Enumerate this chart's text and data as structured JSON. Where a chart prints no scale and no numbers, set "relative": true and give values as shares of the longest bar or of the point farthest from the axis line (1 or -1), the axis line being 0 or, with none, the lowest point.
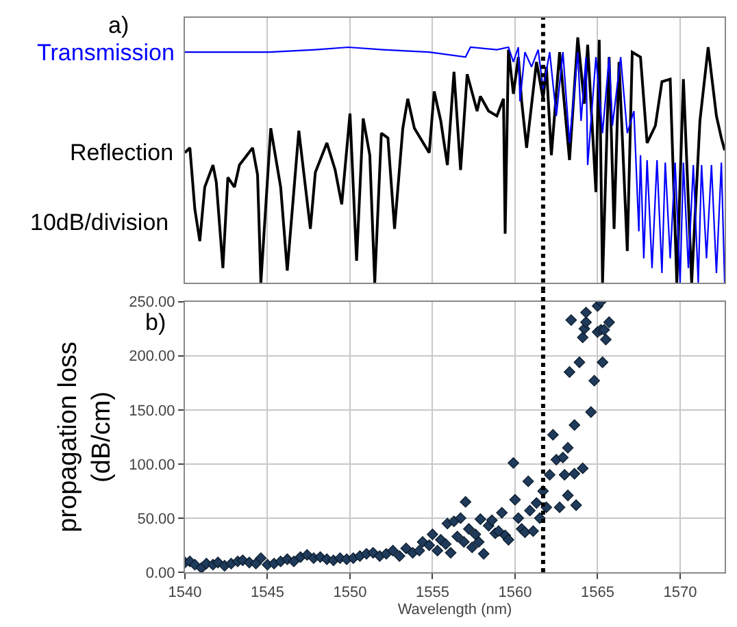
{
  "chart_data": [
    {
      "type": "line",
      "title": "a)",
      "relative": true,
      "xlim": [
        1540,
        1572.7
      ],
      "xticks": [
        1540,
        1545,
        1550,
        1555,
        1560,
        1565,
        1570
      ],
      "tick_labels": false,
      "grid": "x",
      "annotations": [
        "10dB/division"
      ],
      "ref_lines": [
        {
          "axis": "x",
          "value": 1561.7,
          "color": "#000000",
          "line_style": "dotted"
        }
      ],
      "series": [
        {
          "name": "Reflection",
          "color": "#000000",
          "x": [
            1540.0,
            1540.3,
            1540.6,
            1540.9,
            1541.2,
            1541.7,
            1541.9,
            1542.3,
            1542.6,
            1543.0,
            1543.3,
            1544.1,
            1544.4,
            1544.6,
            1545.2,
            1545.8,
            1546.2,
            1546.9,
            1547.6,
            1547.9,
            1548.6,
            1549.1,
            1549.5,
            1550.0,
            1550.4,
            1550.8,
            1551.2,
            1551.5,
            1551.9,
            1552.3,
            1552.7,
            1553.2,
            1553.5,
            1553.9,
            1554.8,
            1555.1,
            1555.5,
            1555.9,
            1556.3,
            1556.7,
            1557.1,
            1557.7,
            1557.9,
            1558.4,
            1558.9,
            1559.3,
            1559.4,
            1559.6,
            1559.9,
            1560.2,
            1560.4,
            1560.7,
            1561.3,
            1561.7,
            1561.9,
            1562.2,
            1562.7,
            1563.3,
            1563.8,
            1564.2,
            1564.4,
            1564.9,
            1565.1,
            1565.3,
            1565.7,
            1566.0,
            1566.3,
            1566.8,
            1567.1,
            1567.6,
            1568.0,
            1568.5,
            1568.9,
            1569.4,
            1569.8,
            1570.2,
            1570.7,
            1571.2,
            1571.7,
            1572.2,
            1572.5,
            1572.7
          ],
          "values": [
            0.53,
            0.55,
            0.3,
            0.17,
            0.39,
            0.48,
            0.41,
            0.06,
            0.43,
            0.39,
            0.48,
            0.55,
            0.44,
            0.0,
            0.63,
            0.39,
            0.05,
            0.62,
            0.22,
            0.45,
            0.57,
            0.46,
            0.32,
            0.69,
            0.09,
            0.67,
            0.52,
            0.0,
            0.61,
            0.59,
            0.22,
            0.63,
            0.75,
            0.63,
            0.53,
            0.78,
            0.66,
            0.48,
            0.86,
            0.46,
            0.85,
            0.7,
            0.76,
            0.7,
            0.68,
            0.75,
            0.2,
            0.95,
            0.77,
            0.92,
            0.74,
            0.55,
            0.9,
            0.75,
            0.88,
            0.52,
            0.94,
            0.5,
            1.0,
            0.73,
            0.97,
            0.37,
            0.99,
            0.0,
            0.92,
            0.22,
            0.9,
            0.13,
            0.94,
            0.92,
            0.57,
            0.64,
            0.82,
            0.83,
            0.0,
            0.83,
            0.0,
            0.66,
            0.96,
            0.68,
            0.59,
            0.54
          ]
        },
        {
          "name": "Transmission",
          "color": "#0000ff",
          "x": [
            1540.0,
            1542.3,
            1545.1,
            1547.9,
            1549.9,
            1552.0,
            1554.8,
            1557.0,
            1557.3,
            1558.9,
            1559.6,
            1559.9,
            1560.2,
            1560.3,
            1560.6,
            1561.0,
            1561.4,
            1561.7,
            1562.1,
            1562.5,
            1562.9,
            1563.3,
            1563.8,
            1564.0,
            1564.3,
            1564.4,
            1564.9,
            1565.3,
            1565.7,
            1565.9,
            1566.4,
            1566.8,
            1567.2,
            1567.5,
            1567.6,
            1567.8,
            1568.0,
            1568.3,
            1568.6,
            1568.9,
            1569.1,
            1569.4,
            1569.7,
            1570.0,
            1570.2,
            1570.5,
            1570.8,
            1571.1,
            1571.3,
            1571.6,
            1571.9,
            1572.2,
            1572.5,
            1572.7
          ],
          "values": [
            0.94,
            0.94,
            0.94,
            0.95,
            0.96,
            0.95,
            0.94,
            0.92,
            0.96,
            0.95,
            0.96,
            0.9,
            0.96,
            0.74,
            0.94,
            0.88,
            0.95,
            0.79,
            0.94,
            0.68,
            0.94,
            0.57,
            0.94,
            0.66,
            0.92,
            0.48,
            0.92,
            0.61,
            0.92,
            0.64,
            0.92,
            0.61,
            0.7,
            0.21,
            0.52,
            0.1,
            0.5,
            0.06,
            0.5,
            0.04,
            0.49,
            0.1,
            0.49,
            0.0,
            0.49,
            0.06,
            0.48,
            0.0,
            0.48,
            0.1,
            0.48,
            0.04,
            0.49,
            0.0
          ]
        }
      ]
    },
    {
      "type": "scatter",
      "title": "b)",
      "xlabel": "Wavelength (nm)",
      "ylabel": "propagation loss\n(dB/cm)",
      "marker": "diamond",
      "grid": true,
      "xlim": [
        1540,
        1572.7
      ],
      "xticks": [
        1540,
        1545,
        1550,
        1555,
        1560,
        1565,
        1570
      ],
      "ylim": [
        0,
        250
      ],
      "yticks": [
        {
          "value": 0,
          "label": "0.00"
        },
        {
          "value": 50,
          "label": "50.00"
        },
        {
          "value": 100,
          "label": "100.00"
        },
        {
          "value": 150,
          "label": "150.00"
        },
        {
          "value": 200,
          "label": "200.00"
        },
        {
          "value": 250,
          "label": "250.00"
        }
      ],
      "ref_lines": [
        {
          "axis": "x",
          "value": 1561.7,
          "color": "#000000",
          "line_style": "dotted"
        }
      ],
      "series": [
        {
          "color": "#1f3a5a",
          "x": [
            1540.0,
            1540.3,
            1540.6,
            1541.0,
            1541.3,
            1541.7,
            1542.0,
            1542.4,
            1542.8,
            1543.2,
            1543.5,
            1543.9,
            1544.3,
            1544.6,
            1545.0,
            1545.4,
            1545.8,
            1546.2,
            1546.6,
            1547.0,
            1547.4,
            1547.8,
            1548.2,
            1548.6,
            1549.0,
            1549.4,
            1549.8,
            1550.2,
            1550.6,
            1551.0,
            1551.4,
            1551.8,
            1552.2,
            1552.6,
            1553.0,
            1553.4,
            1553.8,
            1554.2,
            1554.4,
            1554.8,
            1555.0,
            1555.3,
            1555.5,
            1555.8,
            1555.9,
            1556.1,
            1556.3,
            1556.5,
            1556.7,
            1556.9,
            1557.0,
            1557.2,
            1557.4,
            1557.6,
            1557.8,
            1557.9,
            1558.1,
            1558.4,
            1558.6,
            1558.8,
            1559.0,
            1559.2,
            1559.4,
            1559.6,
            1559.9,
            1560.0,
            1560.2,
            1560.4,
            1560.6,
            1560.8,
            1560.9,
            1561.1,
            1561.3,
            1561.5,
            1561.7,
            1561.9,
            1562.1,
            1562.3,
            1562.5,
            1562.7,
            1562.9,
            1563.0,
            1563.2,
            1563.2,
            1563.3,
            1563.4,
            1563.6,
            1563.6,
            1563.7,
            1563.9,
            1564.1,
            1564.1,
            1564.2,
            1564.3,
            1564.3,
            1564.6,
            1564.8,
            1565.0,
            1565.0,
            1565.2,
            1565.2,
            1565.3,
            1565.4,
            1565.5,
            1565.7
          ],
          "values": [
            9,
            10,
            7,
            4,
            8,
            7,
            9,
            6,
            8,
            10,
            11,
            9,
            8,
            13,
            7,
            8,
            10,
            12,
            10,
            14,
            16,
            13,
            14,
            12,
            11,
            13,
            12,
            13,
            15,
            17,
            18,
            15,
            17,
            20,
            15,
            22,
            18,
            20,
            28,
            25,
            35,
            20,
            30,
            26,
            45,
            18,
            47,
            33,
            50,
            28,
            65,
            40,
            23,
            35,
            28,
            49,
            17,
            43,
            48,
            36,
            38,
            55,
            34,
            30,
            101,
            67,
            50,
            40,
            37,
            84,
            57,
            38,
            64,
            50,
            75,
            60,
            90,
            127,
            104,
            60,
            106,
            90,
            115,
            71,
            185,
            233,
            136,
            91,
            62,
            194,
            96,
            217,
            225,
            231,
            240,
            148,
            177,
            246,
            222,
            250,
            224,
            194,
            224,
            215,
            231
          ]
        }
      ]
    }
  ]
}
